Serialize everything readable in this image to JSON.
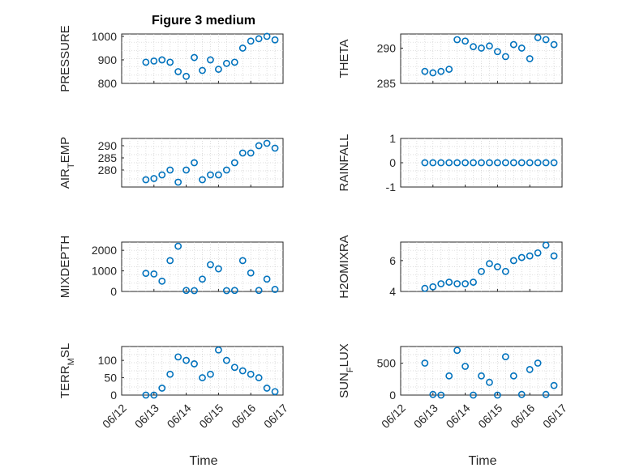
{
  "figure": {
    "title": "Figure 3 medium",
    "series_color": "#0072BD",
    "axis_color": "#262626"
  },
  "chart_data": [
    {
      "type": "scatter",
      "id": "pressure",
      "ylabel": "PRESSURE",
      "ylabel_sub": "",
      "ylabel_tail": "",
      "ylim": [
        800,
        1010
      ],
      "yticks": [
        800,
        900,
        1000
      ],
      "x": [
        "06/12 18:00",
        "06/13 00:00",
        "06/13 06:00",
        "06/13 12:00",
        "06/13 18:00",
        "06/14 00:00",
        "06/14 06:00",
        "06/14 12:00",
        "06/14 18:00",
        "06/15 00:00",
        "06/15 06:00",
        "06/15 12:00",
        "06/15 18:00",
        "06/16 00:00",
        "06/16 06:00",
        "06/16 12:00",
        "06/16 18:00"
      ],
      "y": [
        890,
        895,
        900,
        890,
        850,
        830,
        910,
        855,
        900,
        860,
        885,
        890,
        950,
        980,
        990,
        1000,
        985
      ]
    },
    {
      "type": "scatter",
      "id": "theta",
      "ylabel": "THETA",
      "ylabel_sub": "",
      "ylabel_tail": "",
      "ylim": [
        285,
        292
      ],
      "yticks": [
        285,
        290
      ],
      "x": [
        "06/12 18:00",
        "06/13 00:00",
        "06/13 06:00",
        "06/13 12:00",
        "06/13 18:00",
        "06/14 00:00",
        "06/14 06:00",
        "06/14 12:00",
        "06/14 18:00",
        "06/15 00:00",
        "06/15 06:00",
        "06/15 12:00",
        "06/15 18:00",
        "06/16 00:00",
        "06/16 06:00",
        "06/16 12:00",
        "06/16 18:00"
      ],
      "y": [
        286.7,
        286.5,
        286.7,
        287.0,
        291.2,
        291.0,
        290.2,
        290.0,
        290.3,
        289.5,
        288.8,
        290.5,
        290.0,
        288.5,
        291.5,
        291.2,
        290.5
      ]
    },
    {
      "type": "scatter",
      "id": "air_temp",
      "ylabel": "AIR",
      "ylabel_sub": "T",
      "ylabel_tail": "EMP",
      "ylim": [
        273,
        293
      ],
      "yticks": [
        280,
        285,
        290
      ],
      "x": [
        "06/12 18:00",
        "06/13 00:00",
        "06/13 06:00",
        "06/13 12:00",
        "06/13 18:00",
        "06/14 00:00",
        "06/14 06:00",
        "06/14 12:00",
        "06/14 18:00",
        "06/15 00:00",
        "06/15 06:00",
        "06/15 12:00",
        "06/15 18:00",
        "06/16 00:00",
        "06/16 06:00",
        "06/16 12:00",
        "06/16 18:00"
      ],
      "y": [
        276,
        276.5,
        278,
        280,
        275,
        280,
        283,
        276,
        278,
        278,
        280,
        283,
        287,
        287,
        290,
        291,
        289
      ]
    },
    {
      "type": "scatter",
      "id": "rainfall",
      "ylabel": "RAINFALL",
      "ylabel_sub": "",
      "ylabel_tail": "",
      "ylim": [
        -1,
        1
      ],
      "yticks": [
        -1,
        0,
        1
      ],
      "x": [
        "06/12 18:00",
        "06/13 00:00",
        "06/13 06:00",
        "06/13 12:00",
        "06/13 18:00",
        "06/14 00:00",
        "06/14 06:00",
        "06/14 12:00",
        "06/14 18:00",
        "06/15 00:00",
        "06/15 06:00",
        "06/15 12:00",
        "06/15 18:00",
        "06/16 00:00",
        "06/16 06:00",
        "06/16 12:00",
        "06/16 18:00"
      ],
      "y": [
        0,
        0,
        0,
        0,
        0,
        0,
        0,
        0,
        0,
        0,
        0,
        0,
        0,
        0,
        0,
        0,
        0
      ]
    },
    {
      "type": "scatter",
      "id": "mixdepth",
      "ylabel": "MIXDEPTH",
      "ylabel_sub": "",
      "ylabel_tail": "",
      "ylim": [
        0,
        2400
      ],
      "yticks": [
        0,
        1000,
        2000
      ],
      "x": [
        "06/12 18:00",
        "06/13 00:00",
        "06/13 06:00",
        "06/13 12:00",
        "06/13 18:00",
        "06/14 00:00",
        "06/14 06:00",
        "06/14 12:00",
        "06/14 18:00",
        "06/15 00:00",
        "06/15 06:00",
        "06/15 12:00",
        "06/15 18:00",
        "06/16 00:00",
        "06/16 06:00",
        "06/16 12:00",
        "06/16 18:00"
      ],
      "y": [
        880,
        850,
        500,
        1500,
        2200,
        50,
        40,
        600,
        1300,
        1100,
        40,
        50,
        1500,
        900,
        50,
        600,
        100
      ]
    },
    {
      "type": "scatter",
      "id": "h2omixra",
      "ylabel": "H2OMIXRA",
      "ylabel_sub": "",
      "ylabel_tail": "",
      "ylim": [
        4,
        7.2
      ],
      "yticks": [
        4,
        6
      ],
      "x": [
        "06/12 18:00",
        "06/13 00:00",
        "06/13 06:00",
        "06/13 12:00",
        "06/13 18:00",
        "06/14 00:00",
        "06/14 06:00",
        "06/14 12:00",
        "06/14 18:00",
        "06/15 00:00",
        "06/15 06:00",
        "06/15 12:00",
        "06/15 18:00",
        "06/16 00:00",
        "06/16 06:00",
        "06/16 12:00",
        "06/16 18:00"
      ],
      "y": [
        4.2,
        4.3,
        4.5,
        4.6,
        4.5,
        4.5,
        4.6,
        5.3,
        5.8,
        5.6,
        5.3,
        6.0,
        6.2,
        6.3,
        6.5,
        7.0,
        6.3
      ]
    },
    {
      "type": "scatter",
      "id": "terr_msl",
      "ylabel": "TERR",
      "ylabel_sub": "M",
      "ylabel_tail": "SL",
      "ylim": [
        0,
        140
      ],
      "yticks": [
        0,
        50,
        100
      ],
      "x": [
        "06/12 18:00",
        "06/13 00:00",
        "06/13 06:00",
        "06/13 12:00",
        "06/13 18:00",
        "06/14 00:00",
        "06/14 06:00",
        "06/14 12:00",
        "06/14 18:00",
        "06/15 00:00",
        "06/15 06:00",
        "06/15 12:00",
        "06/15 18:00",
        "06/16 00:00",
        "06/16 06:00",
        "06/16 12:00",
        "06/16 18:00"
      ],
      "y": [
        0,
        0,
        20,
        60,
        110,
        100,
        90,
        50,
        60,
        130,
        100,
        80,
        70,
        60,
        50,
        20,
        10
      ]
    },
    {
      "type": "scatter",
      "id": "sun_flux",
      "ylabel": "SUN",
      "ylabel_sub": "F",
      "ylabel_tail": "LUX",
      "ylim": [
        0,
        760
      ],
      "yticks": [
        0,
        500
      ],
      "x": [
        "06/12 18:00",
        "06/13 00:00",
        "06/13 06:00",
        "06/13 12:00",
        "06/13 18:00",
        "06/14 00:00",
        "06/14 06:00",
        "06/14 12:00",
        "06/14 18:00",
        "06/15 00:00",
        "06/15 06:00",
        "06/15 12:00",
        "06/15 18:00",
        "06/16 00:00",
        "06/16 06:00",
        "06/16 12:00",
        "06/16 18:00"
      ],
      "y": [
        500,
        10,
        0,
        300,
        700,
        450,
        0,
        300,
        200,
        0,
        600,
        300,
        10,
        400,
        500,
        10,
        150
      ]
    }
  ],
  "xaxis": {
    "range": [
      "06/12 00:00",
      "06/17 00:00"
    ],
    "tick_labels": [
      "06/12",
      "06/13",
      "06/14",
      "06/15",
      "06/16",
      "06/17"
    ],
    "label_left": "Time",
    "label_right": "Time"
  }
}
